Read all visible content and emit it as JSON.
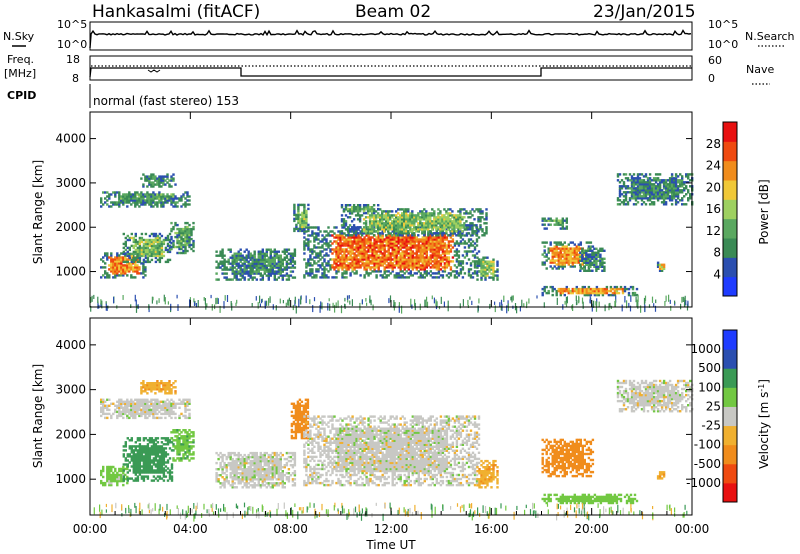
{
  "header": {
    "station": "Hankasalmi (fitACF)",
    "beam": "Beam 02",
    "date": "23/Jan/2015"
  },
  "noise_panel": {
    "left_label": "N.Sky",
    "right_label": "N.Search",
    "tick_top": "10^5",
    "tick_bottom": "10^0",
    "right_tick_top": "10^5",
    "right_tick_bottom": "10^0"
  },
  "freq_panel": {
    "left_label_1": "Freq.",
    "left_label_2": "[MHz]",
    "left_tick_top": "18",
    "left_tick_bottom": "8",
    "right_tick_top": "60",
    "right_tick_bottom": "0",
    "right_label": "Nave"
  },
  "cpid": {
    "label": "CPID",
    "text": "normal (fast stereo) 153"
  },
  "colors": {
    "power_scale": [
      "#1f3cff",
      "#2b4fb0",
      "#3a8a55",
      "#5aa860",
      "#9ed060",
      "#f0c838",
      "#f08c1c",
      "#ef4a10",
      "#e81010"
    ],
    "velocity_scale": [
      "#e81010",
      "#ef4a10",
      "#f08c1c",
      "#f0b030",
      "#c8c8c4",
      "#72c842",
      "#3a9a55",
      "#2b4fb0",
      "#1f3cff"
    ]
  },
  "chart_data": [
    {
      "type": "heatmap",
      "title": "",
      "xlabel": "",
      "ylabel": "Slant Range [km]",
      "x_unit": "hours UT",
      "xlim": [
        0,
        24
      ],
      "ylim": [
        200,
        4600
      ],
      "yticks": [
        "1000",
        "2000",
        "3000",
        "4000"
      ],
      "colorbar": {
        "label": "Power [dB]",
        "ticks": [
          "4",
          "8",
          "12",
          "16",
          "20",
          "24",
          "28"
        ],
        "range": [
          0,
          32
        ]
      },
      "echo_regions": [
        {
          "t0": 0.4,
          "t1": 2.2,
          "r0": 850,
          "r1": 1400,
          "value": 24
        },
        {
          "t0": 1.3,
          "t1": 3.2,
          "r0": 1200,
          "r1": 1850,
          "value": 14
        },
        {
          "t0": 0.4,
          "t1": 4.0,
          "r0": 2450,
          "r1": 2800,
          "value": 10
        },
        {
          "t0": 3.2,
          "t1": 4.1,
          "r0": 1400,
          "r1": 2100,
          "value": 10
        },
        {
          "t0": 2.0,
          "t1": 3.4,
          "r0": 2900,
          "r1": 3200,
          "value": 9
        },
        {
          "t0": 5.0,
          "t1": 8.2,
          "r0": 800,
          "r1": 1500,
          "value": 9
        },
        {
          "t0": 8.1,
          "t1": 8.7,
          "r0": 1900,
          "r1": 2500,
          "value": 13
        },
        {
          "t0": 8.5,
          "t1": 15.5,
          "r0": 850,
          "r1": 2000,
          "value": 25
        },
        {
          "t0": 10.0,
          "t1": 15.8,
          "r0": 1800,
          "r1": 2400,
          "value": 14
        },
        {
          "t0": 10.0,
          "t1": 11.5,
          "r0": 2300,
          "r1": 2500,
          "value": 12
        },
        {
          "t0": 15.4,
          "t1": 16.2,
          "r0": 800,
          "r1": 1300,
          "value": 15
        },
        {
          "t0": 18.0,
          "t1": 20.0,
          "r0": 1050,
          "r1": 1650,
          "value": 23
        },
        {
          "t0": 18.0,
          "t1": 19.0,
          "r0": 1950,
          "r1": 2200,
          "value": 12
        },
        {
          "t0": 18.0,
          "t1": 21.8,
          "r0": 450,
          "r1": 650,
          "value": 22
        },
        {
          "t0": 19.5,
          "t1": 20.5,
          "r0": 1000,
          "r1": 1500,
          "value": 9
        },
        {
          "t0": 21.0,
          "t1": 24.0,
          "r0": 2500,
          "r1": 3200,
          "value": 9
        },
        {
          "t0": 22.6,
          "t1": 22.9,
          "r0": 1000,
          "r1": 1200,
          "value": 20
        }
      ]
    },
    {
      "type": "heatmap",
      "title": "",
      "xlabel": "Time UT",
      "ylabel": "Slant Range [km]",
      "x_unit": "hours UT",
      "xlim": [
        0,
        24
      ],
      "ylim": [
        200,
        4600
      ],
      "yticks": [
        "1000",
        "2000",
        "3000",
        "4000"
      ],
      "xticks": [
        "00:00",
        "04:00",
        "08:00",
        "12:00",
        "16:00",
        "20:00",
        "00:00"
      ],
      "colorbar": {
        "label": "Velocity [m s-1]",
        "ticks": [
          "1000",
          "500",
          "100",
          "25",
          "-25",
          "-100",
          "-500",
          "-1000"
        ]
      },
      "echo_regions": [
        {
          "t0": 0.4,
          "t1": 1.5,
          "r0": 850,
          "r1": 1300,
          "value": 50
        },
        {
          "t0": 1.3,
          "t1": 3.3,
          "r0": 950,
          "r1": 1900,
          "value": 300
        },
        {
          "t0": 0.4,
          "t1": 4.0,
          "r0": 2350,
          "r1": 2800,
          "value": 0
        },
        {
          "t0": 3.2,
          "t1": 4.1,
          "r0": 1400,
          "r1": 2100,
          "value": 80
        },
        {
          "t0": 2.0,
          "t1": 3.4,
          "r0": 2900,
          "r1": 3200,
          "value": -80
        },
        {
          "t0": 5.0,
          "t1": 8.2,
          "r0": 800,
          "r1": 1600,
          "value": 0
        },
        {
          "t0": 8.0,
          "t1": 8.7,
          "r0": 1900,
          "r1": 2800,
          "value": -200
        },
        {
          "t0": 8.5,
          "t1": 15.5,
          "r0": 850,
          "r1": 2400,
          "value": 0
        },
        {
          "t0": 15.4,
          "t1": 16.2,
          "r0": 800,
          "r1": 1400,
          "value": -80
        },
        {
          "t0": 18.0,
          "t1": 20.0,
          "r0": 1050,
          "r1": 1900,
          "value": -300
        },
        {
          "t0": 18.0,
          "t1": 21.8,
          "r0": 450,
          "r1": 650,
          "value": 60
        },
        {
          "t0": 21.0,
          "t1": 24.0,
          "r0": 2500,
          "r1": 3200,
          "value": 0
        },
        {
          "t0": 22.6,
          "t1": 22.9,
          "r0": 1000,
          "r1": 1200,
          "value": -80
        }
      ]
    }
  ]
}
